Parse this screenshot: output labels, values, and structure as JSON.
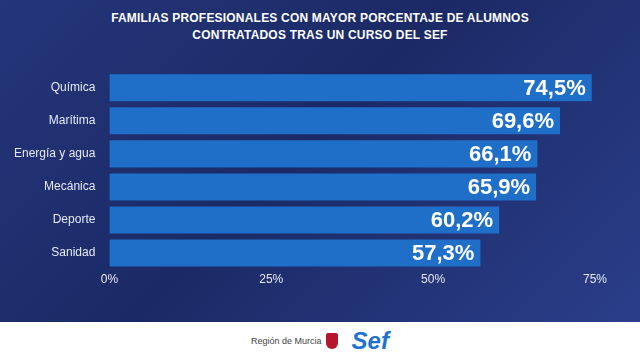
{
  "chart_data": {
    "type": "bar",
    "title": "FAMILIAS PROFESIONALES CON MAYOR PORCENTAJE DE ALUMNOS CONTRATADOS TRAS UN CURSO DEL SEF",
    "orientation": "horizontal",
    "categories": [
      "Química",
      "Marítima",
      "Energía y agua",
      "Mecánica",
      "Deporte",
      "Sanidad"
    ],
    "values": [
      74.5,
      69.6,
      66.1,
      65.9,
      60.2,
      57.3
    ],
    "value_labels": [
      "74,5%",
      "69,6%",
      "66,1%",
      "65,9%",
      "60,2%",
      "57,3%"
    ],
    "color": "#1f6fc8",
    "xlim": [
      0,
      75
    ],
    "xticks": [
      {
        "value": 0,
        "label": "0%"
      },
      {
        "value": 25,
        "label": "25%"
      },
      {
        "value": 50,
        "label": "50%"
      },
      {
        "value": 75,
        "label": "75%"
      }
    ],
    "grid": false,
    "data_labels": true
  },
  "footer": {
    "logos": [
      "Región de Murcia",
      "Sef"
    ]
  }
}
